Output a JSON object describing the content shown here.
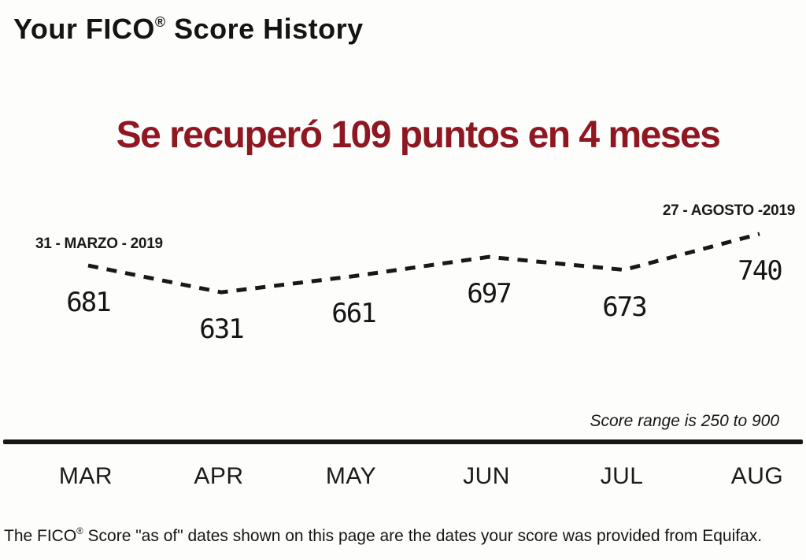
{
  "header": {
    "title_pre": "Your FICO",
    "title_reg": "®",
    "title_post": " Score History"
  },
  "headline": {
    "text": "Se recuperó 109 puntos en 4 meses",
    "color": "#8e1722"
  },
  "chart_data": {
    "type": "line",
    "categories": [
      "MAR",
      "APR",
      "MAY",
      "JUN",
      "JUL",
      "AUG"
    ],
    "values": [
      681,
      631,
      661,
      697,
      673,
      740
    ],
    "line_style": "dashed",
    "line_color": "#181818",
    "ylim": [
      250,
      900
    ],
    "legend": "none",
    "grid": false,
    "annotations": [
      {
        "text": "31 - MARZO - 2019",
        "point_index": 0,
        "position": "above-left"
      },
      {
        "text": "27 - AGOSTO -2019",
        "point_index": 5,
        "position": "above-right"
      }
    ],
    "note": "Score range is 250 to 900"
  },
  "footer": {
    "text_pre": "The FICO",
    "reg": "®",
    "text_post": " Score \"as of\" dates shown on this page are the dates your score was provided from Equifax."
  }
}
